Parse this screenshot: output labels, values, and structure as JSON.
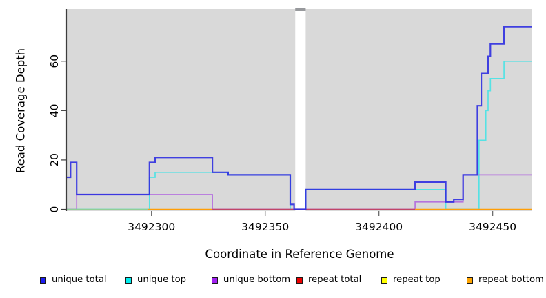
{
  "chart_data": {
    "type": "line",
    "subtype": "step-coverage",
    "title": "",
    "xlabel": "Coordinate in Reference Genome",
    "ylabel": "Read Coverage Depth",
    "xlim": [
      3492262.8,
      3492467.4
    ],
    "ylim": [
      0,
      81
    ],
    "xticks": [
      3492300,
      3492350,
      3492400,
      3492450
    ],
    "yticks": [
      0,
      20,
      40,
      60
    ],
    "grid": false,
    "panel_bg": "#d9d9d9",
    "gap_region": {
      "from": 3492363.2,
      "to": 3492367.8,
      "fill": "#ffffff",
      "cap_color": "#97999c"
    },
    "series": [
      {
        "name": "unique top",
        "color": "#55e2e4",
        "width": 1.7,
        "points": [
          [
            3492262.8,
            0
          ],
          [
            3492299.1,
            13
          ],
          [
            3492301.6,
            15
          ],
          [
            3492333.7,
            14
          ],
          [
            3492361.0,
            0
          ],
          [
            3492367.8,
            8
          ],
          [
            3492429.4,
            0
          ],
          [
            3492444.0,
            28
          ],
          [
            3492447.0,
            40
          ],
          [
            3492448.0,
            48
          ],
          [
            3492449.0,
            53
          ],
          [
            3492455.0,
            60
          ],
          [
            3492467.4,
            60
          ]
        ]
      },
      {
        "name": "unique bottom",
        "color": "#b573de",
        "width": 1.7,
        "points": [
          [
            3492262.8,
            0
          ],
          [
            3492267.1,
            6
          ],
          [
            3492326.8,
            0
          ],
          [
            3492415.9,
            3
          ],
          [
            3492437.0,
            14
          ],
          [
            3492467.4,
            14
          ]
        ]
      },
      {
        "name": "unique total",
        "color": "#2d2de0",
        "opacity": 0.9,
        "width": 2.2,
        "points": [
          [
            3492262.8,
            13
          ],
          [
            3492264.4,
            19
          ],
          [
            3492267.1,
            6
          ],
          [
            3492299.1,
            19
          ],
          [
            3492301.6,
            21
          ],
          [
            3492326.8,
            15
          ],
          [
            3492333.7,
            14
          ],
          [
            3492361.0,
            2
          ],
          [
            3492362.7,
            0
          ],
          [
            3492367.8,
            8
          ],
          [
            3492415.9,
            11
          ],
          [
            3492429.4,
            3
          ],
          [
            3492432.9,
            4
          ],
          [
            3492437.0,
            14
          ],
          [
            3492443.3,
            42
          ],
          [
            3492445.0,
            55
          ],
          [
            3492448.0,
            62
          ],
          [
            3492449.0,
            67
          ],
          [
            3492455.0,
            74
          ],
          [
            3492467.4,
            74
          ]
        ]
      }
    ],
    "baseline_segments": [
      {
        "name": "baseline-green",
        "color": "#8fcf96",
        "from": 3492262.8,
        "to": 3492298.3
      },
      {
        "name": "repeat-bottom-left",
        "color": "#ff9e06",
        "from": 3492298.3,
        "to": 3492326.8
      },
      {
        "name": "repeat-total",
        "color": "#c14567",
        "from": 3492326.8,
        "to": 3492415.9
      },
      {
        "name": "repeat-bottom-right",
        "color": "#ff9e06",
        "from": 3492415.9,
        "to": 3492467.4
      }
    ],
    "legend_position": "bottom",
    "legend": [
      {
        "label": "unique total",
        "color": "#1c1cf0"
      },
      {
        "label": "unique top",
        "color": "#00eeee"
      },
      {
        "label": "unique bottom",
        "color": "#a020f0"
      },
      {
        "label": "repeat total",
        "color": "#ee0000"
      },
      {
        "label": "repeat top",
        "color": "#ffff00"
      },
      {
        "label": "repeat bottom",
        "color": "#ffa500"
      }
    ]
  }
}
